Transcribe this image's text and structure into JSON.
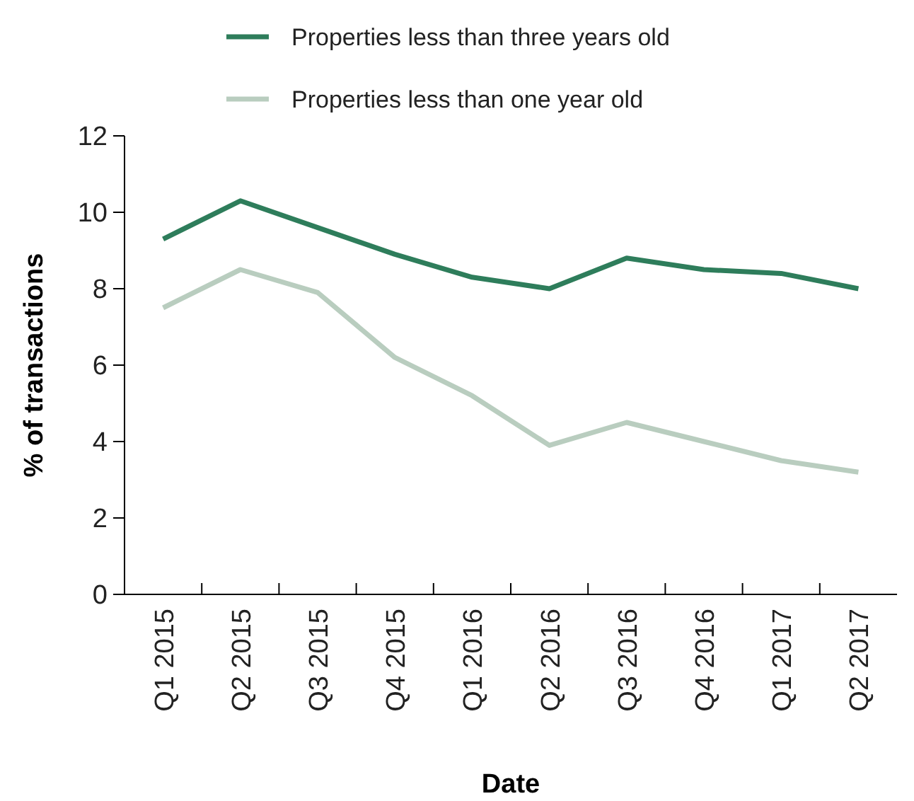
{
  "chart_data": {
    "type": "line",
    "xlabel": "Date",
    "ylabel": "% of transactions",
    "categories": [
      "Q1 2015",
      "Q2 2015",
      "Q3 2015",
      "Q4 2015",
      "Q1 2016",
      "Q2 2016",
      "Q3 2016",
      "Q4 2016",
      "Q1 2017",
      "Q2 2017"
    ],
    "series": [
      {
        "name": "Properties less than three years old",
        "color": "#2e7d5b",
        "values": [
          9.3,
          10.3,
          9.6,
          8.9,
          8.3,
          8.0,
          8.8,
          8.5,
          8.4,
          8.0
        ]
      },
      {
        "name": "Properties less than one year old",
        "color": "#b9cdbf",
        "values": [
          7.5,
          8.5,
          7.9,
          6.2,
          5.2,
          3.9,
          4.5,
          4.0,
          3.5,
          3.2
        ]
      }
    ],
    "ylim": [
      0,
      12
    ],
    "yticks": [
      0,
      2,
      4,
      6,
      8,
      10,
      12
    ],
    "legend": "top",
    "grid": false,
    "marker": "none",
    "line_style": "solid"
  }
}
